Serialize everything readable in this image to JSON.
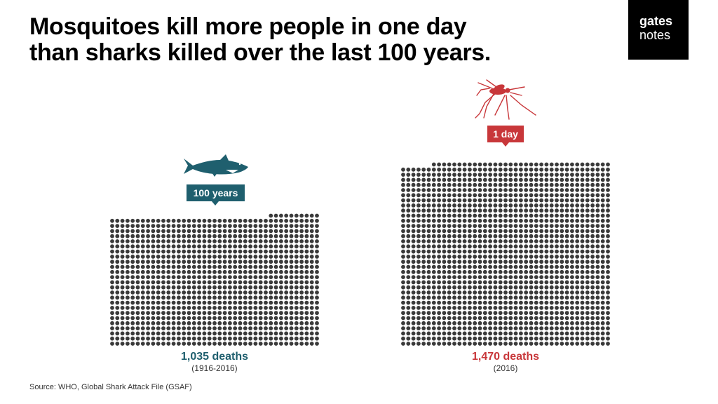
{
  "title": {
    "line1": "Mosquitoes kill more people in one day",
    "line2": "than sharks killed over the last 100 years."
  },
  "logo": {
    "line1": "gates",
    "line2": "notes"
  },
  "source": "Source: WHO, Global Shark Attack File (GSAF)",
  "colors": {
    "dot": "#3a3a3a",
    "shark": "#1f5f6e",
    "mosquito": "#c8373a"
  },
  "chart_data": {
    "type": "pictogram",
    "unit": "deaths",
    "series": [
      {
        "animal": "shark",
        "icon": "shark-icon",
        "period_label": "100 years",
        "value": 1035,
        "value_label": "1,035 deaths",
        "years_label": "(1916-2016)",
        "color": "#1f5f6e"
      },
      {
        "animal": "mosquito",
        "icon": "mosquito-icon",
        "period_label": "1 day",
        "value": 1470,
        "value_label": "1,470 deaths",
        "years_label": "(2016)",
        "color": "#c8373a"
      }
    ]
  }
}
